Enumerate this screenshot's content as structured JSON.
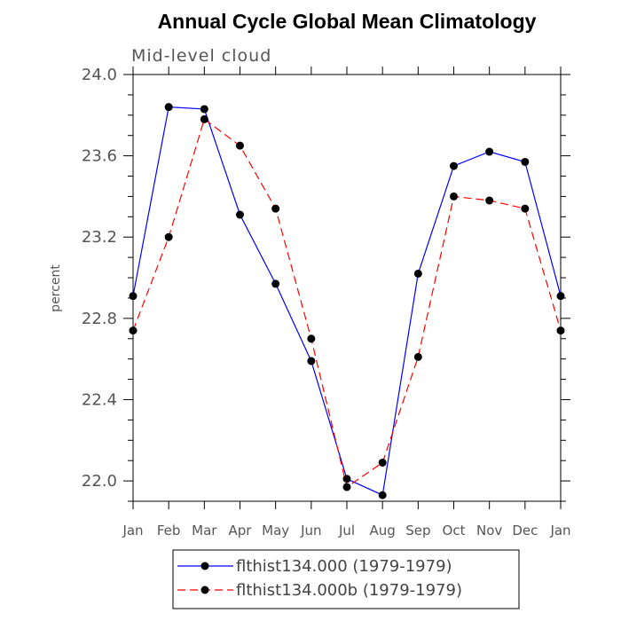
{
  "chart_data": {
    "type": "line",
    "title": "Annual Cycle Global Mean Climatology",
    "subtitle": "Mid-level cloud",
    "xlabel": "",
    "ylabel": "percent",
    "categories": [
      "Jan",
      "Feb",
      "Mar",
      "Apr",
      "May",
      "Jun",
      "Jul",
      "Aug",
      "Sep",
      "Oct",
      "Nov",
      "Dec",
      "Jan"
    ],
    "ylim": [
      21.9,
      24.0
    ],
    "yticks": [
      "22.0",
      "22.4",
      "22.8",
      "23.2",
      "23.6",
      "24.0"
    ],
    "ytick_values": [
      22.0,
      22.4,
      22.8,
      23.2,
      23.6,
      24.0
    ],
    "grid": false,
    "legend_position": "bottom",
    "series": [
      {
        "name": "flthist134.000 (1979-1979)",
        "color": "#0000ff",
        "dash": "solid",
        "marker": "filled-circle",
        "values": [
          22.91,
          23.84,
          23.83,
          23.31,
          22.97,
          22.59,
          22.01,
          21.93,
          23.02,
          23.55,
          23.62,
          23.57,
          22.91
        ]
      },
      {
        "name": "flthist134.000b (1979-1979)",
        "color": "#ff0000",
        "dash": "dashed",
        "marker": "filled-circle",
        "values": [
          22.74,
          23.2,
          23.78,
          23.65,
          23.34,
          22.7,
          21.97,
          22.09,
          22.61,
          23.4,
          23.38,
          23.34,
          22.74
        ]
      }
    ]
  }
}
